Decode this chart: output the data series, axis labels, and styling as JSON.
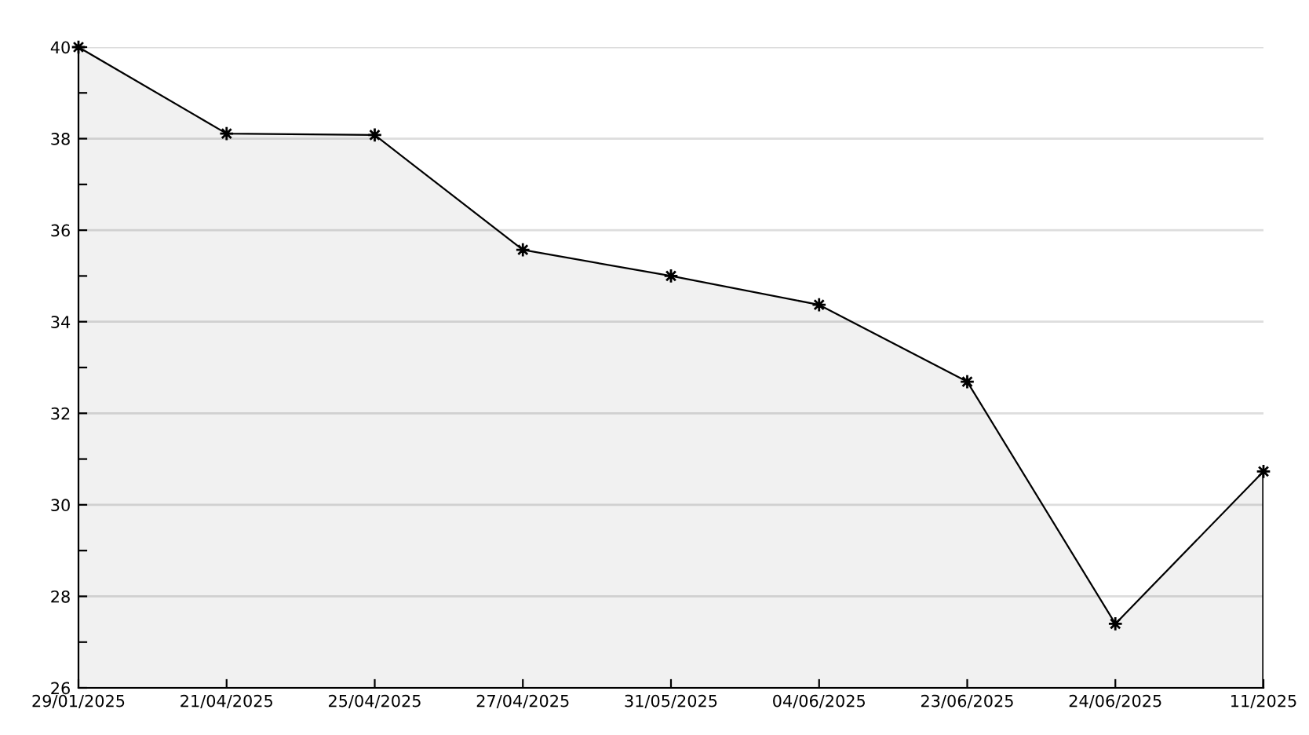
{
  "chart_data": {
    "type": "area",
    "categories": [
      "29/01/2025",
      "21/04/2025",
      "25/04/2025",
      "27/04/2025",
      "31/05/2025",
      "04/06/2025",
      "23/06/2025",
      "24/06/2025",
      "11/2025"
    ],
    "series": [
      {
        "color": "#000000",
        "values": [
          40,
          38.11,
          38.08,
          35.57,
          35.0,
          34.37,
          32.69,
          27.4,
          30.73
        ]
      }
    ],
    "ylim": [
      26,
      40
    ],
    "yticks": [
      26,
      {
        "value": 27,
        "label": null
      },
      28,
      {
        "value": 29,
        "label": null
      },
      30,
      {
        "value": 31,
        "label": null
      },
      32,
      {
        "value": 33,
        "label": null
      },
      34,
      {
        "value": 35,
        "label": null
      },
      36,
      {
        "value": 37,
        "label": null
      },
      38,
      {
        "value": 39,
        "label": null
      },
      40
    ],
    "grid": "y",
    "marker": "star",
    "line_style": "solid"
  }
}
